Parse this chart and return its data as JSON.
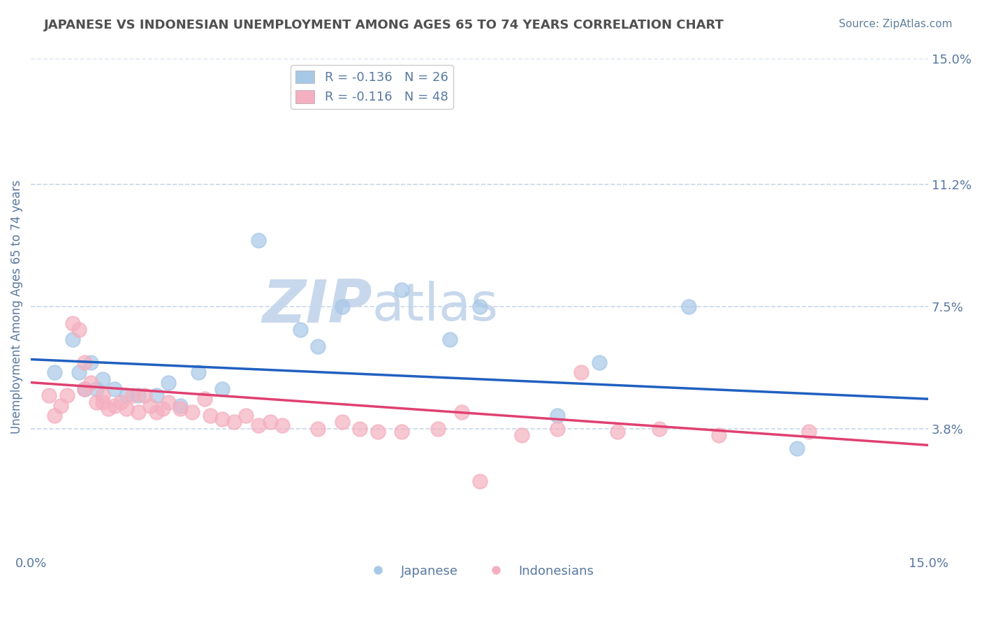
{
  "title": "JAPANESE VS INDONESIAN UNEMPLOYMENT AMONG AGES 65 TO 74 YEARS CORRELATION CHART",
  "source": "Source: ZipAtlas.com",
  "ylabel": "Unemployment Among Ages 65 to 74 years",
  "xlim": [
    0,
    0.15
  ],
  "ylim": [
    0,
    0.15
  ],
  "ytick_labels_right": [
    "3.8%",
    "7.5%",
    "11.2%",
    "15.0%"
  ],
  "ytick_values_right": [
    0.038,
    0.075,
    0.112,
    0.15
  ],
  "blue_scatter_color": "#a8c8e8",
  "pink_scatter_color": "#f4b0c0",
  "blue_line_color": "#2060c0",
  "pink_line_color": "#e04070",
  "watermark_zip_color": "#c8d8ec",
  "watermark_atlas_color": "#c8d8ec",
  "background_color": "#ffffff",
  "grid_color": "#c8d8e8",
  "title_color": "#505050",
  "source_color": "#6080a0",
  "axis_label_color": "#5878a0",
  "jp_x": [
    0.004,
    0.007,
    0.008,
    0.009,
    0.01,
    0.011,
    0.012,
    0.014,
    0.016,
    0.018,
    0.021,
    0.023,
    0.025,
    0.028,
    0.032,
    0.038,
    0.045,
    0.048,
    0.052,
    0.062,
    0.07,
    0.075,
    0.088,
    0.095,
    0.11,
    0.128
  ],
  "jp_y": [
    0.055,
    0.065,
    0.055,
    0.05,
    0.058,
    0.05,
    0.053,
    0.05,
    0.048,
    0.048,
    0.048,
    0.052,
    0.045,
    0.055,
    0.05,
    0.095,
    0.068,
    0.063,
    0.075,
    0.08,
    0.065,
    0.075,
    0.042,
    0.058,
    0.075,
    0.032
  ],
  "idn_x": [
    0.003,
    0.004,
    0.005,
    0.006,
    0.007,
    0.008,
    0.009,
    0.009,
    0.01,
    0.011,
    0.012,
    0.012,
    0.013,
    0.014,
    0.015,
    0.016,
    0.017,
    0.018,
    0.019,
    0.02,
    0.021,
    0.022,
    0.023,
    0.025,
    0.027,
    0.029,
    0.03,
    0.032,
    0.034,
    0.036,
    0.038,
    0.04,
    0.042,
    0.048,
    0.052,
    0.055,
    0.058,
    0.062,
    0.068,
    0.072,
    0.075,
    0.082,
    0.088,
    0.092,
    0.098,
    0.105,
    0.115,
    0.13
  ],
  "idn_y": [
    0.048,
    0.042,
    0.045,
    0.048,
    0.07,
    0.068,
    0.058,
    0.05,
    0.052,
    0.046,
    0.046,
    0.048,
    0.044,
    0.045,
    0.046,
    0.044,
    0.048,
    0.043,
    0.048,
    0.045,
    0.043,
    0.044,
    0.046,
    0.044,
    0.043,
    0.047,
    0.042,
    0.041,
    0.04,
    0.042,
    0.039,
    0.04,
    0.039,
    0.038,
    0.04,
    0.038,
    0.037,
    0.037,
    0.038,
    0.043,
    0.022,
    0.036,
    0.038,
    0.055,
    0.037,
    0.038,
    0.036,
    0.037
  ],
  "jp_trend_x": [
    0.0,
    0.15
  ],
  "jp_trend_y": [
    0.059,
    0.047
  ],
  "idn_trend_x": [
    0.0,
    0.15
  ],
  "idn_trend_y": [
    0.052,
    0.033
  ]
}
